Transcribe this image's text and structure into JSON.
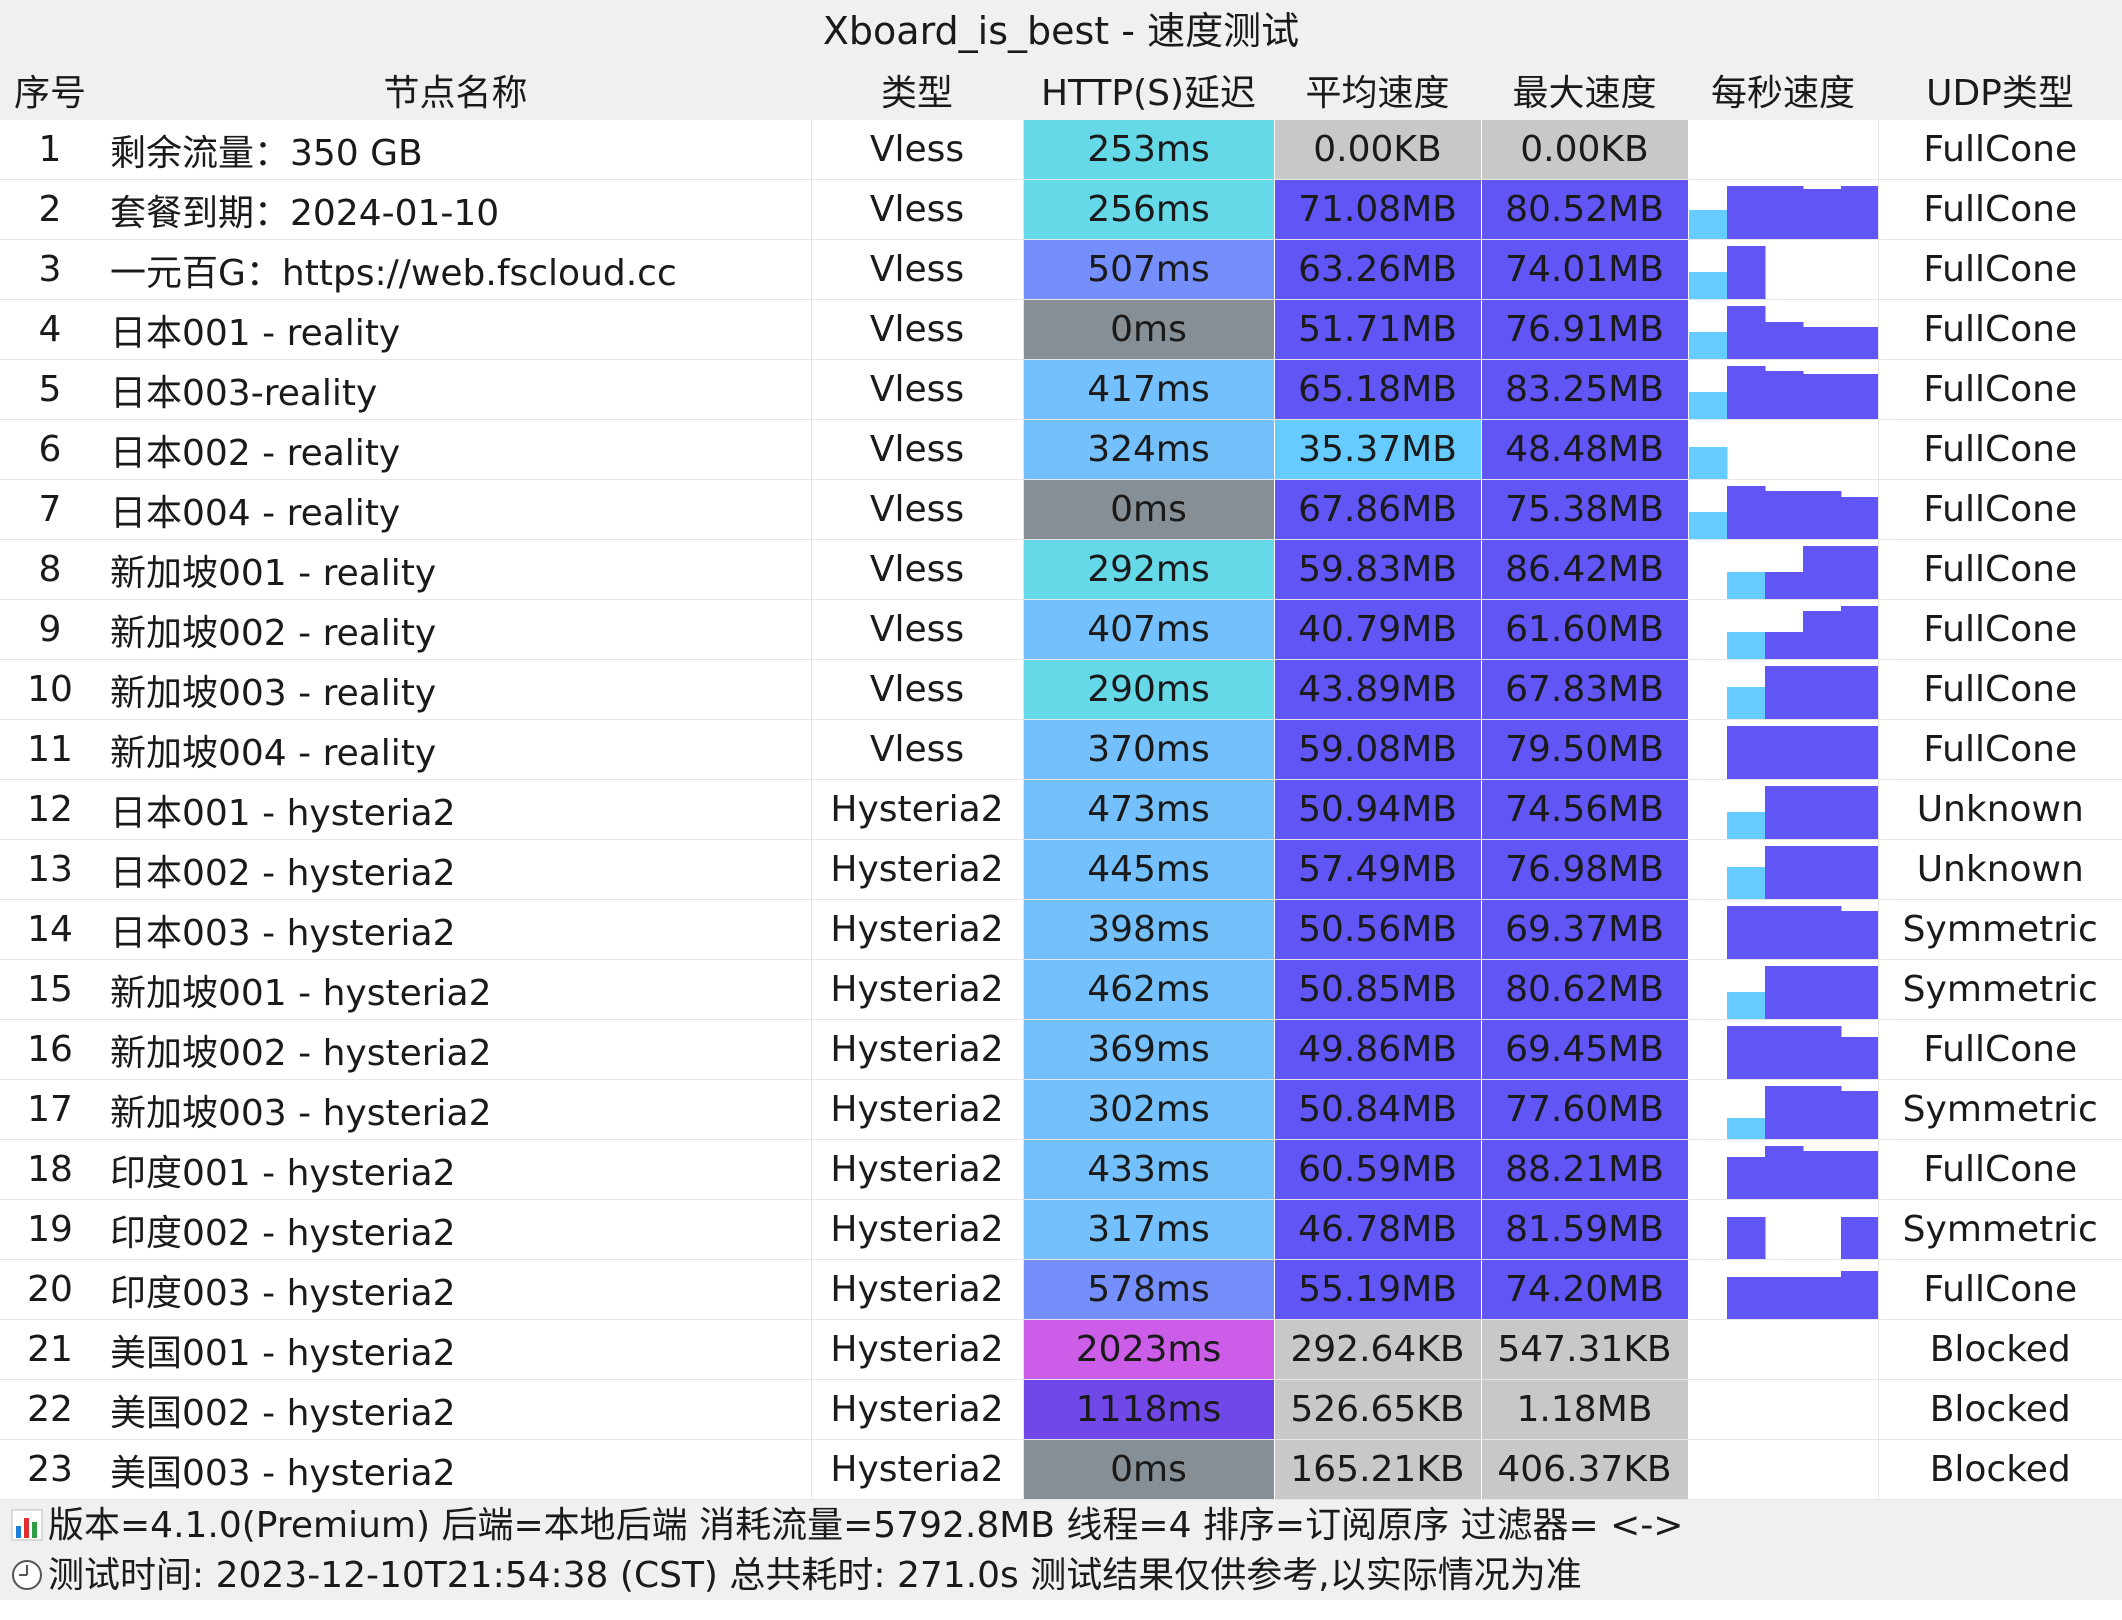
{
  "window": {
    "title": "Xboard_is_best - 速度测试"
  },
  "columns": [
    "序号",
    "节点名称",
    "类型",
    "HTTP(S)延迟",
    "平均速度",
    "最大速度",
    "每秒速度",
    "UDP类型"
  ],
  "colors": {
    "latency_excellent": "#66d9e8",
    "latency_good": "#74c0fc",
    "latency_fair": "#748ffc",
    "latency_poor": "#7048e8",
    "latency_bad": "#cc5de8",
    "latency_zero": "#868e96",
    "speed_high": "#6155f5",
    "speed_medium": "#6a8cf7",
    "speed_low": "#66ccff",
    "speed_none": "#c8c8c8",
    "spark_high": "#6155f5",
    "spark_low": "#66ccff",
    "spark_mid": "#e599f7"
  },
  "rows": [
    {
      "idx": "1",
      "name": "剩余流量：350 GB",
      "type": "Vless",
      "latency": "253ms",
      "lat_level": "excellent",
      "avg": "0.00KB",
      "avg_level": "none",
      "max": "0.00KB",
      "max_level": "none",
      "spark": [
        0,
        0,
        0,
        0,
        0
      ],
      "udp": "FullCone"
    },
    {
      "idx": "2",
      "name": "套餐到期：2024-01-10",
      "type": "Vless",
      "latency": "256ms",
      "lat_level": "excellent",
      "avg": "71.08MB",
      "avg_level": "high",
      "max": "80.52MB",
      "max_level": "high",
      "spark": [
        0.55,
        1,
        1,
        0.95,
        1
      ],
      "udp": "FullCone"
    },
    {
      "idx": "3",
      "name": "一元百G：https://web.fscloud.cc",
      "type": "Vless",
      "latency": "507ms",
      "lat_level": "fair",
      "avg": "63.26MB",
      "avg_level": "high",
      "max": "74.01MB",
      "max_level": "high",
      "spark": [
        0.5,
        1,
        0,
        0,
        0
      ],
      "udp": "FullCone"
    },
    {
      "idx": "4",
      "name": "日本001 - reality",
      "type": "Vless",
      "latency": "0ms",
      "lat_level": "zero",
      "avg": "51.71MB",
      "avg_level": "high",
      "max": "76.91MB",
      "max_level": "high",
      "spark": [
        0.5,
        1,
        0.7,
        0.6,
        0.6
      ],
      "udp": "FullCone"
    },
    {
      "idx": "5",
      "name": "日本003-reality",
      "type": "Vless",
      "latency": "417ms",
      "lat_level": "good",
      "avg": "65.18MB",
      "avg_level": "high",
      "max": "83.25MB",
      "max_level": "high",
      "spark": [
        0.5,
        1,
        0.9,
        0.85,
        0.85
      ],
      "udp": "FullCone"
    },
    {
      "idx": "6",
      "name": "日本002 - reality",
      "type": "Vless",
      "latency": "324ms",
      "lat_level": "good",
      "avg": "35.37MB",
      "avg_level": "low",
      "max": "48.48MB",
      "max_level": "high",
      "spark": [
        0.6,
        0,
        0,
        0,
        0
      ],
      "udp": "FullCone"
    },
    {
      "idx": "7",
      "name": "日本004 - reality",
      "type": "Vless",
      "latency": "0ms",
      "lat_level": "zero",
      "avg": "67.86MB",
      "avg_level": "high",
      "max": "75.38MB",
      "max_level": "high",
      "spark": [
        0.5,
        1,
        0.9,
        0.9,
        0.8
      ],
      "udp": "FullCone"
    },
    {
      "idx": "8",
      "name": "新加坡001 - reality",
      "type": "Vless",
      "latency": "292ms",
      "lat_level": "excellent",
      "avg": "59.83MB",
      "avg_level": "high",
      "max": "86.42MB",
      "max_level": "high",
      "spark": [
        0,
        0.5,
        0.5,
        1,
        1
      ],
      "udp": "FullCone"
    },
    {
      "idx": "9",
      "name": "新加坡002 - reality",
      "type": "Vless",
      "latency": "407ms",
      "lat_level": "good",
      "avg": "40.79MB",
      "avg_level": "high",
      "max": "61.60MB",
      "max_level": "high",
      "spark": [
        0,
        0.5,
        0.5,
        0.9,
        1
      ],
      "udp": "FullCone"
    },
    {
      "idx": "10",
      "name": "新加坡003 - reality",
      "type": "Vless",
      "latency": "290ms",
      "lat_level": "excellent",
      "avg": "43.89MB",
      "avg_level": "high",
      "max": "67.83MB",
      "max_level": "high",
      "spark": [
        0,
        0.6,
        1,
        1,
        1
      ],
      "udp": "FullCone"
    },
    {
      "idx": "11",
      "name": "新加坡004 - reality",
      "type": "Vless",
      "latency": "370ms",
      "lat_level": "good",
      "avg": "59.08MB",
      "avg_level": "high",
      "max": "79.50MB",
      "max_level": "high",
      "spark": [
        0,
        1,
        1,
        1,
        1
      ],
      "udp": "FullCone"
    },
    {
      "idx": "12",
      "name": "日本001 - hysteria2",
      "type": "Hysteria2",
      "latency": "473ms",
      "lat_level": "good",
      "avg": "50.94MB",
      "avg_level": "high",
      "max": "74.56MB",
      "max_level": "high",
      "spark": [
        0,
        0.5,
        1,
        1,
        1
      ],
      "udp": "Unknown"
    },
    {
      "idx": "13",
      "name": "日本002 - hysteria2",
      "type": "Hysteria2",
      "latency": "445ms",
      "lat_level": "good",
      "avg": "57.49MB",
      "avg_level": "high",
      "max": "76.98MB",
      "max_level": "high",
      "spark": [
        0,
        0.6,
        1,
        1,
        1
      ],
      "udp": "Unknown"
    },
    {
      "idx": "14",
      "name": "日本003 - hysteria2",
      "type": "Hysteria2",
      "latency": "398ms",
      "lat_level": "good",
      "avg": "50.56MB",
      "avg_level": "high",
      "max": "69.37MB",
      "max_level": "high",
      "spark": [
        0,
        1,
        1,
        1,
        0.9
      ],
      "udp": "Symmetric"
    },
    {
      "idx": "15",
      "name": "新加坡001 - hysteria2",
      "type": "Hysteria2",
      "latency": "462ms",
      "lat_level": "good",
      "avg": "50.85MB",
      "avg_level": "high",
      "max": "80.62MB",
      "max_level": "high",
      "spark": [
        0,
        0.5,
        1,
        1,
        1
      ],
      "udp": "Symmetric"
    },
    {
      "idx": "16",
      "name": "新加坡002 - hysteria2",
      "type": "Hysteria2",
      "latency": "369ms",
      "lat_level": "good",
      "avg": "49.86MB",
      "avg_level": "high",
      "max": "69.45MB",
      "max_level": "high",
      "spark": [
        0,
        1,
        1,
        1,
        0.8
      ],
      "udp": "FullCone"
    },
    {
      "idx": "17",
      "name": "新加坡003 - hysteria2",
      "type": "Hysteria2",
      "latency": "302ms",
      "lat_level": "good",
      "avg": "50.84MB",
      "avg_level": "high",
      "max": "77.60MB",
      "max_level": "high",
      "spark": [
        0,
        0.4,
        1,
        1,
        0.9
      ],
      "udp": "Symmetric"
    },
    {
      "idx": "18",
      "name": "印度001 - hysteria2",
      "type": "Hysteria2",
      "latency": "433ms",
      "lat_level": "good",
      "avg": "60.59MB",
      "avg_level": "high",
      "max": "88.21MB",
      "max_level": "high",
      "spark": [
        0,
        0.8,
        1,
        0.9,
        0.9
      ],
      "udp": "FullCone"
    },
    {
      "idx": "19",
      "name": "印度002 - hysteria2",
      "type": "Hysteria2",
      "latency": "317ms",
      "lat_level": "good",
      "avg": "46.78MB",
      "avg_level": "high",
      "max": "81.59MB",
      "max_level": "high",
      "spark": [
        0,
        0.8,
        0,
        0,
        0.8
      ],
      "udp": "Symmetric"
    },
    {
      "idx": "20",
      "name": "印度003 - hysteria2",
      "type": "Hysteria2",
      "latency": "578ms",
      "lat_level": "fair",
      "avg": "55.19MB",
      "avg_level": "high",
      "max": "74.20MB",
      "max_level": "high",
      "spark": [
        0,
        0.8,
        0.8,
        0.8,
        0.9
      ],
      "udp": "FullCone"
    },
    {
      "idx": "21",
      "name": "美国001 - hysteria2",
      "type": "Hysteria2",
      "latency": "2023ms",
      "lat_level": "bad",
      "avg": "292.64KB",
      "avg_level": "none",
      "max": "547.31KB",
      "max_level": "none",
      "spark": [
        0,
        0,
        0,
        0,
        0
      ],
      "udp": "Blocked"
    },
    {
      "idx": "22",
      "name": "美国002 - hysteria2",
      "type": "Hysteria2",
      "latency": "1118ms",
      "lat_level": "poor",
      "avg": "526.65KB",
      "avg_level": "none",
      "max": "1.18MB",
      "max_level": "none",
      "spark": [
        0,
        0,
        0,
        0,
        0
      ],
      "udp": "Blocked"
    },
    {
      "idx": "23",
      "name": "美国003 - hysteria2",
      "type": "Hysteria2",
      "latency": "0ms",
      "lat_level": "zero",
      "avg": "165.21KB",
      "avg_level": "none",
      "max": "406.37KB",
      "max_level": "none",
      "spark": [
        0,
        0,
        0,
        0,
        0
      ],
      "udp": "Blocked"
    }
  ],
  "footer": {
    "line1": "版本=4.1.0(Premium)  后端=本地后端  消耗流量=5792.8MB   线程=4  排序=订阅原序  过滤器= <->",
    "line2": "测试时间: 2023-12-10T21:54:38 (CST) 总共耗时: 271.0s 测试结果仅供参考,以实际情况为准",
    "icon1": "bar-chart-icon",
    "icon2": "clock-icon"
  }
}
